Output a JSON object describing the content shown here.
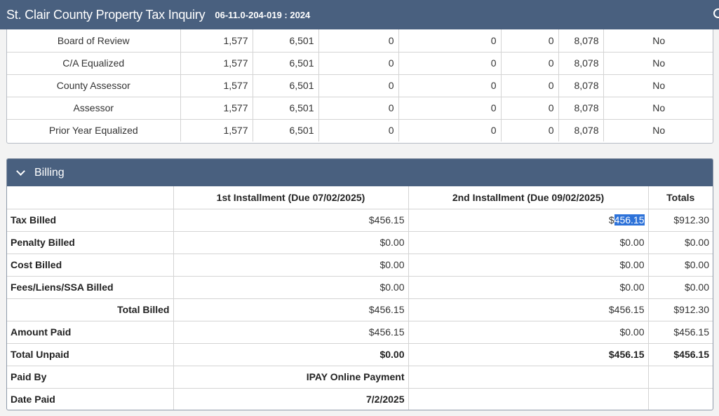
{
  "header": {
    "title": "St. Clair County Property Tax Inquiry",
    "parcel": "06-11.0-204-019 : 2024"
  },
  "assessments": {
    "rows": [
      {
        "label": "Board of Review",
        "values": [
          "1,577",
          "6,501",
          "0",
          "0",
          "0",
          "8,078",
          "No"
        ]
      },
      {
        "label": "C/A Equalized",
        "values": [
          "1,577",
          "6,501",
          "0",
          "0",
          "0",
          "8,078",
          "No"
        ]
      },
      {
        "label": "County Assessor",
        "values": [
          "1,577",
          "6,501",
          "0",
          "0",
          "0",
          "8,078",
          "No"
        ]
      },
      {
        "label": "Assessor",
        "values": [
          "1,577",
          "6,501",
          "0",
          "0",
          "0",
          "8,078",
          "No"
        ]
      },
      {
        "label": "Prior Year Equalized",
        "values": [
          "1,577",
          "6,501",
          "0",
          "0",
          "0",
          "8,078",
          "No"
        ]
      }
    ]
  },
  "billing": {
    "section_label": "Billing",
    "headers": [
      "",
      "1st Installment (Due 07/02/2025)",
      "2nd Installment (Due 09/02/2025)",
      "Totals"
    ],
    "tax_billed": {
      "label": "Tax Billed",
      "first": "$456.15",
      "second_prefix": "$",
      "second_selected": "456.15",
      "total": "$912.30"
    },
    "penalty_billed": {
      "label": "Penalty Billed",
      "first": "$0.00",
      "second": "$0.00",
      "total": "$0.00"
    },
    "cost_billed": {
      "label": "Cost Billed",
      "first": "$0.00",
      "second": "$0.00",
      "total": "$0.00"
    },
    "fees_billed": {
      "label": "Fees/Liens/SSA Billed",
      "first": "$0.00",
      "second": "$0.00",
      "total": "$0.00"
    },
    "total_billed": {
      "label": "Total Billed",
      "first": "$456.15",
      "second": "$456.15",
      "total": "$912.30"
    },
    "amount_paid": {
      "label": "Amount Paid",
      "first": "$456.15",
      "second": "$0.00",
      "total": "$456.15"
    },
    "total_unpaid": {
      "label": "Total Unpaid",
      "first": "$0.00",
      "second": "$456.15",
      "total": "$456.15"
    },
    "paid_by": {
      "label": "Paid By",
      "first": "IPAY Online Payment",
      "second": "",
      "total": ""
    },
    "date_paid": {
      "label": "Date Paid",
      "first": "7/2/2025",
      "second": "",
      "total": ""
    }
  }
}
